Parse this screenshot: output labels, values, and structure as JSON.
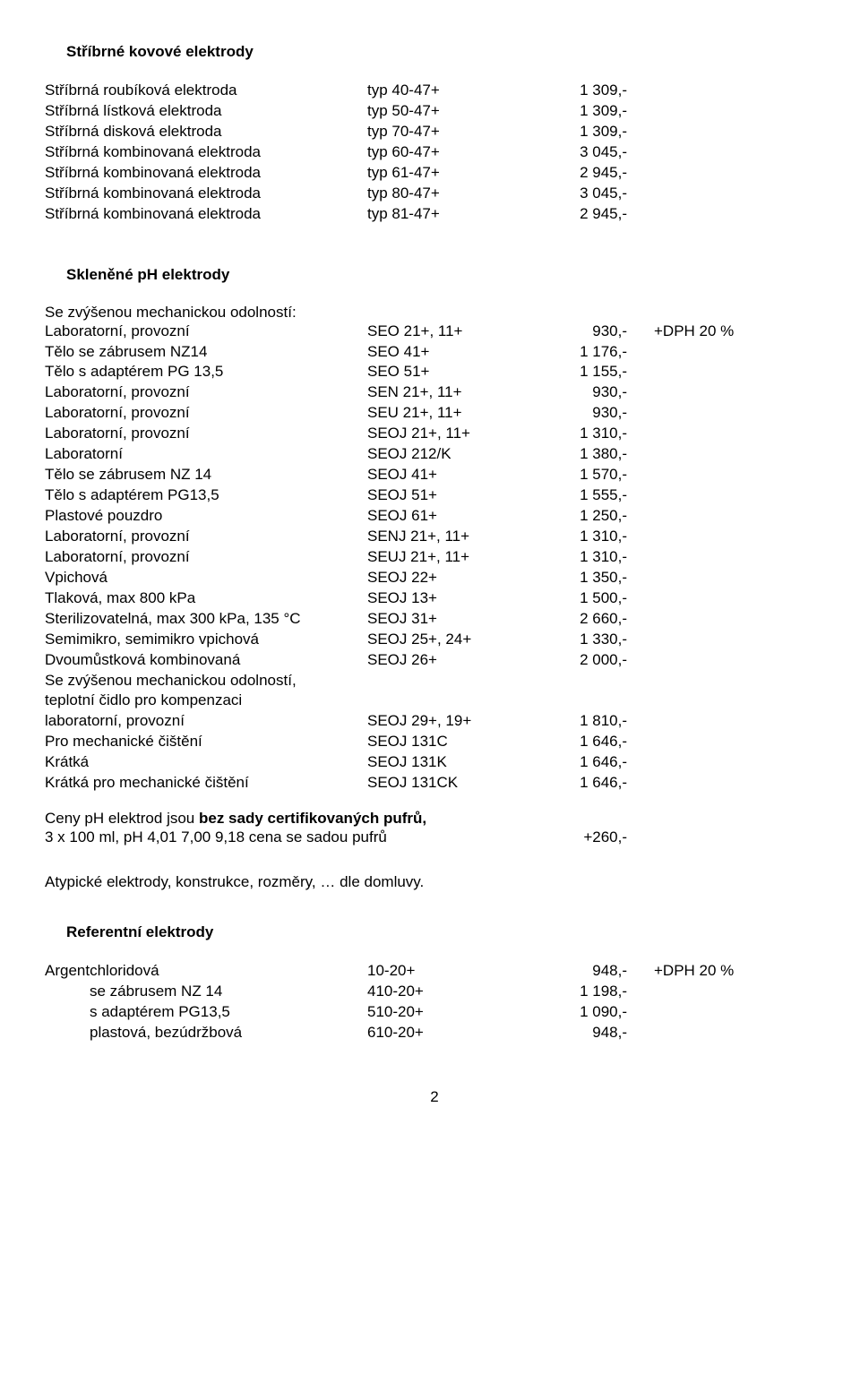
{
  "section1": {
    "title": "Stříbrné kovové elektrody",
    "rows": [
      {
        "c1": "Stříbrná roubíková elektroda",
        "c2": "typ 40-47+",
        "c3": "1 309,-"
      },
      {
        "c1": "Stříbrná lístková elektroda",
        "c2": "typ 50-47+",
        "c3": "1 309,-"
      },
      {
        "c1": "Stříbrná disková elektroda",
        "c2": "typ 70-47+",
        "c3": "1 309,-"
      },
      {
        "c1": "Stříbrná kombinovaná elektroda",
        "c2": "typ 60-47+",
        "c3": "3 045,-"
      },
      {
        "c1": "Stříbrná kombinovaná elektroda",
        "c2": "typ 61-47+",
        "c3": "2 945,-"
      },
      {
        "c1": "Stříbrná kombinovaná elektroda",
        "c2": "typ 80-47+",
        "c3": "3 045,-"
      },
      {
        "c1": "Stříbrná kombinovaná elektroda",
        "c2": "typ 81-47+",
        "c3": "2 945,-"
      }
    ]
  },
  "section2": {
    "title": "Skleněné pH elektrody",
    "intro": "Se zvýšenou mechanickou odolností:",
    "rows": [
      {
        "c1": "Laboratorní, provozní",
        "c2": "SEO 21+, 11+",
        "c3": "930,-",
        "c4": "+DPH 20 %"
      },
      {
        "c1": "Tělo se zábrusem NZ14",
        "c2": "SEO 41+",
        "c3": "1 176,-"
      },
      {
        "c1": "Tělo s adaptérem PG 13,5",
        "c2": "SEO 51+",
        "c3": "1 155,-"
      },
      {
        "c1": "Laboratorní, provozní",
        "c2": "SEN 21+, 11+",
        "c3": "930,-"
      },
      {
        "c1": "Laboratorní, provozní",
        "c2": "SEU 21+, 11+",
        "c3": "930,-"
      },
      {
        "c1": "Laboratorní, provozní",
        "c2": "SEOJ 21+, 11+",
        "c3": "1 310,-"
      },
      {
        "c1": "Laboratorní",
        "c2": "SEOJ 212/K",
        "c3": "1 380,-"
      },
      {
        "c1": "Tělo se zábrusem NZ 14",
        "c2": "SEOJ 41+",
        "c3": "1 570,-"
      },
      {
        "c1": "Tělo s adaptérem PG13,5",
        "c2": "SEOJ 51+",
        "c3": "1 555,-"
      },
      {
        "c1": "Plastové pouzdro",
        "c2": "SEOJ 61+",
        "c3": "1 250,-"
      },
      {
        "c1": "Laboratorní, provozní",
        "c2": "SENJ 21+, 11+",
        "c3": "1 310,-"
      },
      {
        "c1": "Laboratorní, provozní",
        "c2": "SEUJ 21+, 11+",
        "c3": "1 310,-"
      },
      {
        "c1": "Vpichová",
        "c2": "SEOJ 22+",
        "c3": "1 350,-"
      },
      {
        "c1": "Tlaková, max 800 kPa",
        "c2": "SEOJ 13+",
        "c3": "1 500,-"
      },
      {
        "c1": "Sterilizovatelná, max 300 kPa, 135 °C",
        "c2": "SEOJ 31+",
        "c3": "2 660,-"
      },
      {
        "c1": "Semimikro, semimikro vpichová",
        "c2": "SEOJ 25+, 24+",
        "c3": "1 330,-"
      },
      {
        "c1": "Dvoumůstková kombinovaná",
        "c2": "SEOJ 26+",
        "c3": "2 000,-"
      }
    ],
    "extra_lines": [
      "Se zvýšenou mechanickou odolností,",
      "teplotní čidlo pro kompenzaci"
    ],
    "rows2": [
      {
        "c1": "laboratorní, provozní",
        "c2": "SEOJ 29+, 19+",
        "c3": "1 810,-"
      },
      {
        "c1": "Pro mechanické čištění",
        "c2": "SEOJ 131C",
        "c3": "1 646,-"
      },
      {
        "c1": "Krátká",
        "c2": "SEOJ 131K",
        "c3": "1 646,-"
      },
      {
        "c1": "Krátká pro mechanické čištění",
        "c2": "SEOJ 131CK",
        "c3": "1 646,-"
      }
    ]
  },
  "note1": {
    "line1a": "Ceny pH elektrod jsou ",
    "line1b": "bez sady certifikovaných pufrů,",
    "line2_c1": "3 x 100 ml,  pH 4,01  7,00  9,18   cena se sadou pufrů",
    "line2_c3": "+260,-"
  },
  "note2": "Atypické elektrody, konstrukce, rozměry, … dle domluvy.",
  "section3": {
    "title": "Referentní elektrody",
    "rows": [
      {
        "c1": "Argentchloridová",
        "c2": "10-20+",
        "c3": "948,-",
        "c4": "+DPH 20 %",
        "indent": false
      },
      {
        "c1": "se  zábrusem NZ 14",
        "c2": "410-20+",
        "c3": "1 198,-",
        "indent": true
      },
      {
        "c1": "s adaptérem PG13,5",
        "c2": "510-20+",
        "c3": "1 090,-",
        "indent": true
      },
      {
        "c1": "plastová, bezúdržbová",
        "c2": "610-20+",
        "c3": "948,-",
        "indent": true
      }
    ]
  },
  "page_number": "2"
}
